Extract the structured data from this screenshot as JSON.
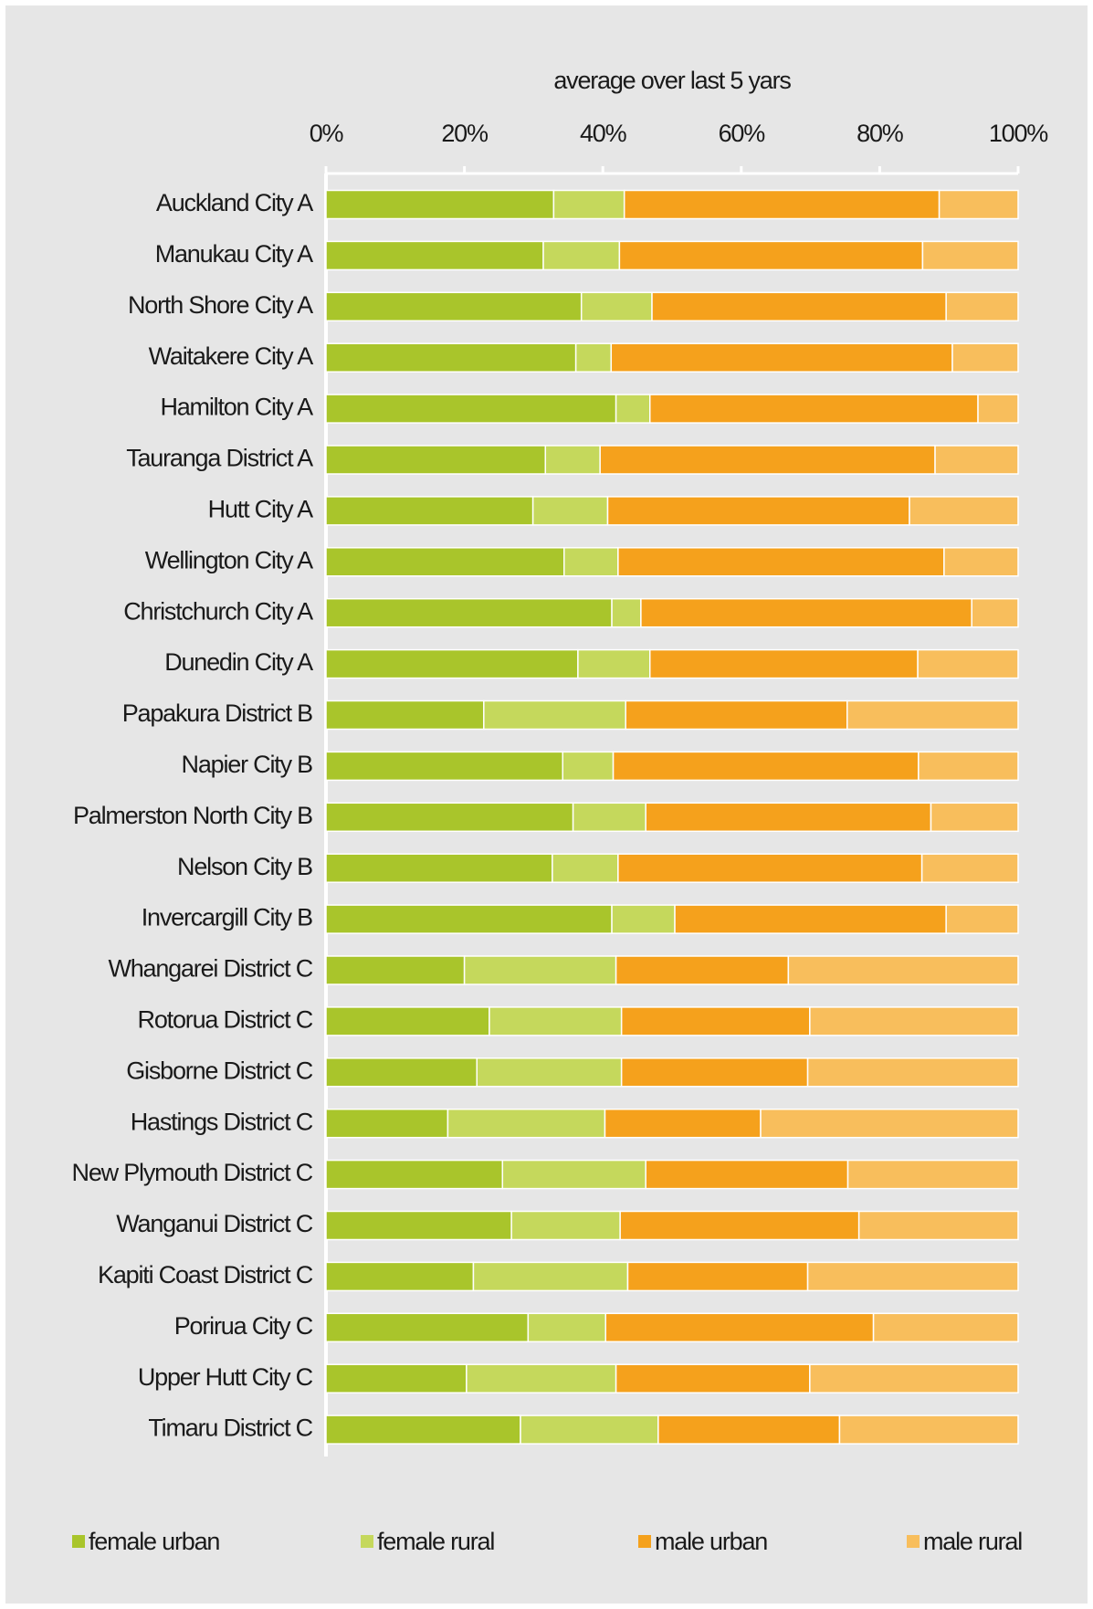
{
  "chart_data": {
    "type": "stacked-bar-horizontal",
    "title": "average over last 5 yars",
    "categories": [
      "Auckland City A",
      "Manukau City A",
      "North Shore City A",
      "Waitakere City A",
      "Hamilton City A",
      "Tauranga District A",
      "Hutt City A",
      "Wellington City A",
      "Christchurch City A",
      "Dunedin City A",
      "Papakura District B",
      "Napier City B",
      "Palmerston North City B",
      "Nelson City B",
      "Invercargill City B",
      "Whangarei District C",
      "Rotorua District C",
      "Gisborne District C",
      "Hastings District C",
      "New Plymouth District C",
      "Wanganui District C",
      "Kapiti Coast District C",
      "Porirua City C",
      "Upper Hutt City C",
      "Timaru District C"
    ],
    "series": [
      {
        "name": "female urban",
        "color": "#a9c52b",
        "values": [
          32.9,
          31.4,
          36.9,
          36.1,
          41.9,
          31.7,
          29.9,
          34.4,
          41.3,
          36.4,
          22.8,
          34.2,
          35.7,
          32.7,
          41.3,
          20.0,
          23.6,
          21.8,
          17.6,
          25.5,
          26.8,
          21.3,
          29.2,
          20.3,
          28.1
        ]
      },
      {
        "name": "female rural",
        "color": "#c5d85c",
        "values": [
          10.2,
          11.0,
          10.2,
          5.1,
          4.9,
          7.9,
          10.8,
          7.8,
          4.2,
          10.4,
          20.5,
          7.3,
          10.5,
          9.5,
          9.1,
          21.9,
          19.1,
          20.9,
          22.7,
          20.7,
          15.7,
          22.3,
          11.2,
          21.6,
          19.9
        ]
      },
      {
        "name": "male urban",
        "color": "#f5a11c",
        "values": [
          45.5,
          43.8,
          42.5,
          49.3,
          47.4,
          48.4,
          43.6,
          47.1,
          47.8,
          38.7,
          32.0,
          44.1,
          41.2,
          43.9,
          39.2,
          24.9,
          27.2,
          26.9,
          22.5,
          29.2,
          34.5,
          26.0,
          38.7,
          28.0,
          26.2
        ]
      },
      {
        "name": "male rural",
        "color": "#f8be5c",
        "values": [
          11.4,
          13.8,
          10.4,
          9.5,
          5.8,
          12.0,
          15.7,
          10.7,
          6.7,
          14.5,
          24.7,
          14.4,
          12.6,
          13.9,
          10.4,
          33.2,
          30.1,
          30.4,
          37.2,
          24.6,
          23.0,
          30.4,
          20.9,
          30.1,
          25.8
        ]
      }
    ],
    "xlim": [
      0,
      100
    ],
    "xticks": [
      {
        "value": 0,
        "label": "0%"
      },
      {
        "value": 20,
        "label": "20%"
      },
      {
        "value": 40,
        "label": "40%"
      },
      {
        "value": 60,
        "label": "60%"
      },
      {
        "value": 80,
        "label": "80%"
      },
      {
        "value": 100,
        "label": "100%"
      }
    ]
  }
}
